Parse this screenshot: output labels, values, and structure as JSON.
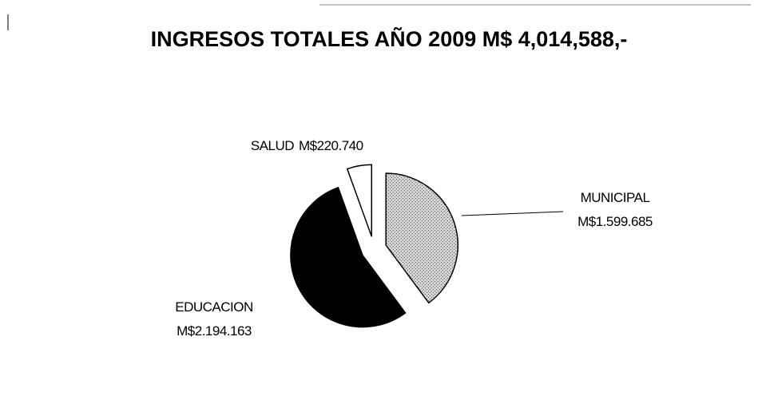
{
  "chart_data": {
    "type": "pie",
    "title": "INGRESOS TOTALES AÑO 2009 M$ 4,014,588,-",
    "categories": [
      "MUNICIPAL",
      "EDUCACION",
      "SALUD"
    ],
    "values": [
      1599685,
      2194163,
      220740
    ],
    "value_labels": [
      "M$1.599.685",
      "M$2.194.163",
      "M$220.740"
    ],
    "colors": [
      "#d4d4d4",
      "#000000",
      "#ffffff"
    ]
  }
}
